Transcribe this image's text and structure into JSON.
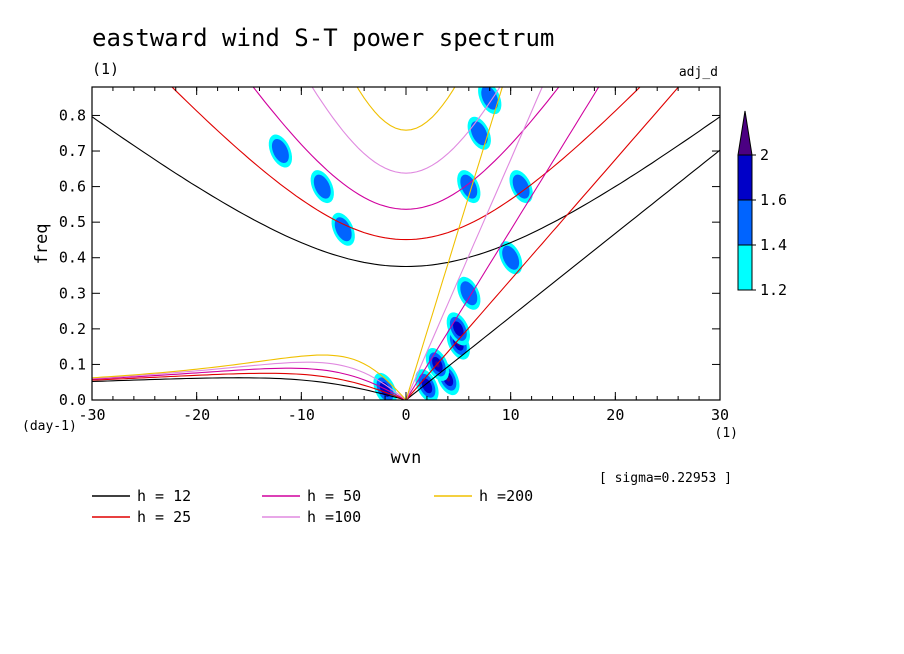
{
  "chart_data": {
    "type": "contour",
    "title": "eastward wind S-T power spectrum",
    "units": "(1)",
    "top_right_label": "adj_d",
    "xlabel": "wvn",
    "ylabel": "freq",
    "x_units": "(1)",
    "y_units": "(day-1)",
    "xlim": [
      -30,
      30
    ],
    "ylim": [
      0,
      0.88
    ],
    "xticks": [
      "-30",
      "-20",
      "-10",
      "0",
      "10",
      "20",
      "30"
    ],
    "yticks": [
      "0.0",
      "0.1",
      "0.2",
      "0.3",
      "0.4",
      "0.5",
      "0.6",
      "0.7",
      "0.8"
    ],
    "note": "[ sigma=0.22953 ]",
    "colorbar": {
      "levels": [
        "1.2",
        "1.4",
        "1.6",
        "2"
      ],
      "colors": [
        "#00ffff",
        "#0064ff",
        "#0000c8",
        "#4b0082"
      ]
    },
    "dispersion_curves": [
      {
        "label": "h = 12",
        "h": 12,
        "color": "#000000"
      },
      {
        "label": "h = 25",
        "h": 25,
        "color": "#e00000"
      },
      {
        "label": "h = 50",
        "h": 50,
        "color": "#d0009e"
      },
      {
        "label": "h =100",
        "h": 100,
        "color": "#e08ae0"
      },
      {
        "label": "h =200",
        "h": 200,
        "color": "#f0c000"
      }
    ],
    "contour_blobs": [
      {
        "x": 4,
        "y": 0.06,
        "level": 3
      },
      {
        "x": 3,
        "y": 0.1,
        "level": 3
      },
      {
        "x": 5,
        "y": 0.16,
        "level": 3
      },
      {
        "x": 5,
        "y": 0.2,
        "level": 2
      },
      {
        "x": 2,
        "y": 0.04,
        "level": 2
      },
      {
        "x": 6,
        "y": 0.3,
        "level": 1
      },
      {
        "x": 6,
        "y": 0.6,
        "level": 1
      },
      {
        "x": 7,
        "y": 0.75,
        "level": 1
      },
      {
        "x": 8,
        "y": 0.85,
        "level": 1
      },
      {
        "x": 10,
        "y": 0.4,
        "level": 1
      },
      {
        "x": 11,
        "y": 0.6,
        "level": 1
      },
      {
        "x": -12,
        "y": 0.7,
        "level": 1
      },
      {
        "x": -8,
        "y": 0.6,
        "level": 1
      },
      {
        "x": -6,
        "y": 0.48,
        "level": 1
      },
      {
        "x": -2,
        "y": 0.03,
        "level": 2
      }
    ]
  }
}
